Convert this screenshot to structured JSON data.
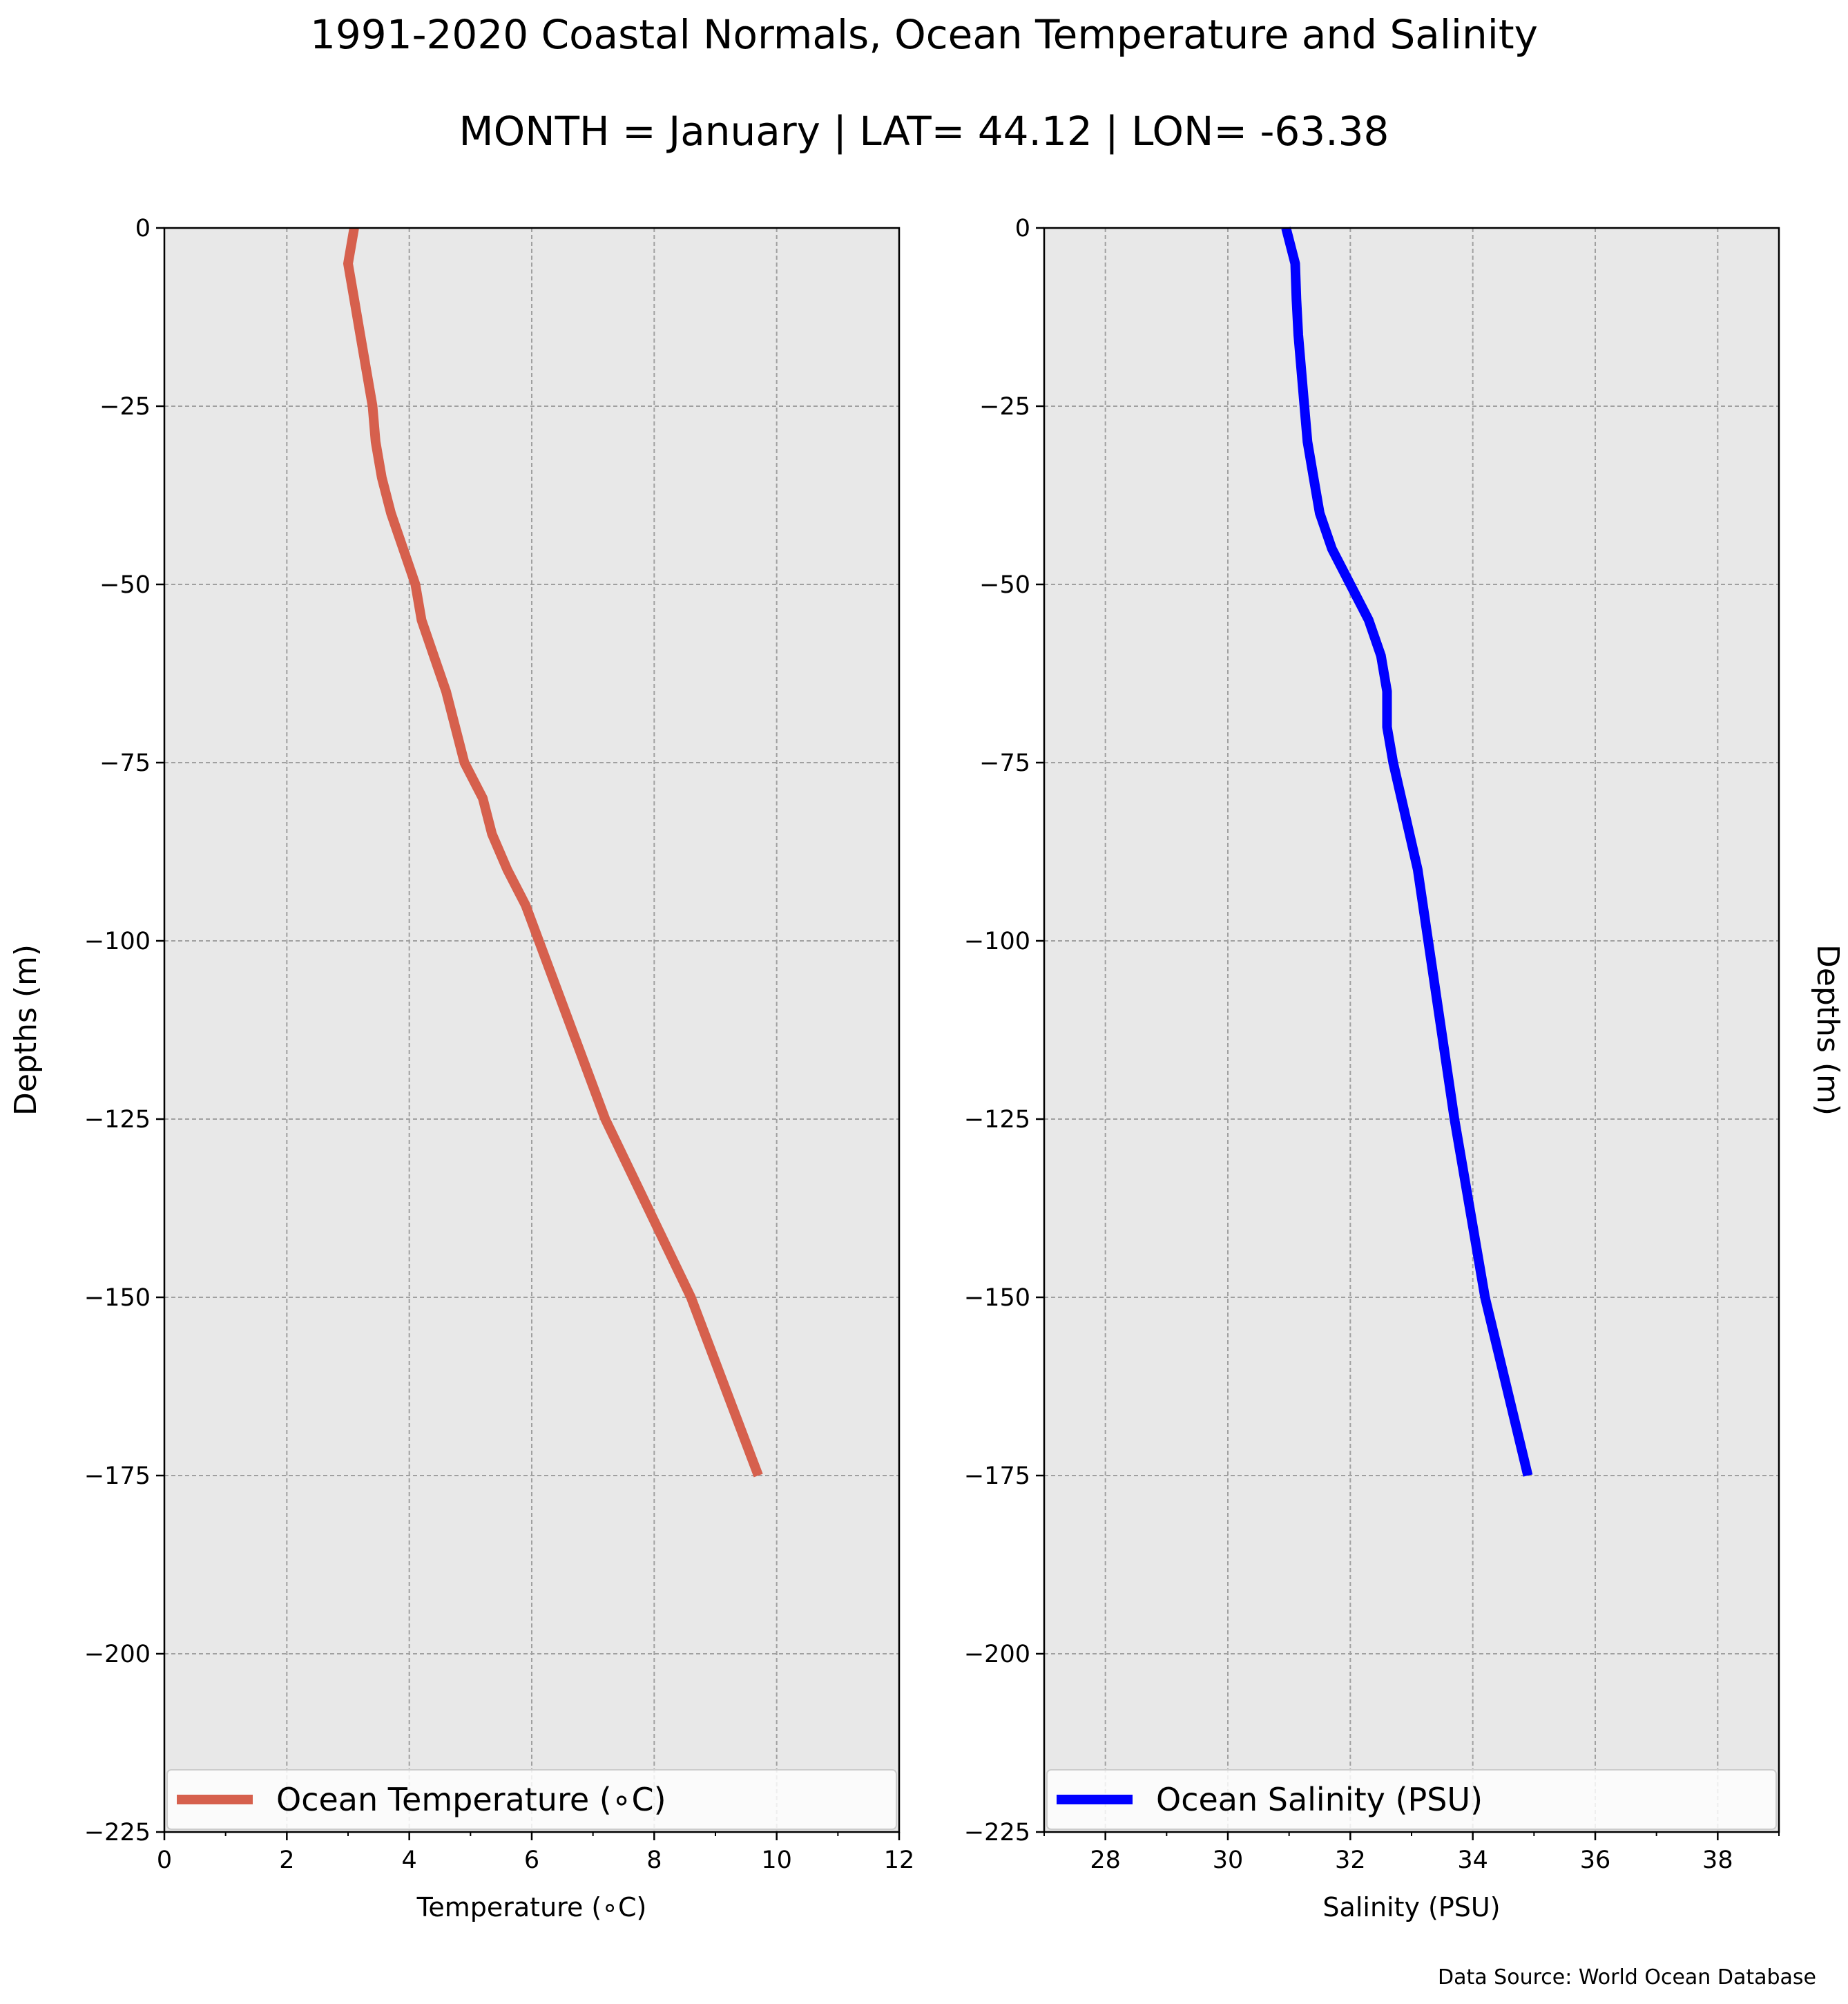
{
  "figure": {
    "title": "1991-2020 Coastal Normals, Ocean Temperature and Salinity",
    "subtitle": "MONTH = January | LAT= 44.12 | LON= -63.38",
    "source": "Data Source: World Ocean Database",
    "background": "#e8e8e8",
    "grid": true
  },
  "chart_data": [
    {
      "type": "line",
      "xlabel": "Temperature (∘C)",
      "ylabel": "Depths (m)",
      "ylabel_side": "left",
      "xlim": [
        0,
        12
      ],
      "ylim": [
        -225,
        0
      ],
      "xticks": [
        0,
        2,
        4,
        6,
        8,
        10,
        12
      ],
      "xtick_labels": [
        "0",
        "2",
        "4",
        "6",
        "8",
        "10",
        "12"
      ],
      "yticks": [
        0,
        -25,
        -50,
        -75,
        -100,
        -125,
        -150,
        -175,
        -200,
        -225
      ],
      "ytick_labels": [
        "0",
        "−25",
        "−50",
        "−75",
        "−100",
        "−125",
        "−150",
        "−175",
        "−200",
        "−225"
      ],
      "legend_placement": "lower-center",
      "series": [
        {
          "name": "Ocean Temperature (∘C)",
          "color": "#d6604d",
          "x": [
            3.1,
            3.0,
            3.1,
            3.2,
            3.3,
            3.4,
            3.45,
            3.55,
            3.7,
            3.9,
            4.1,
            4.2,
            4.4,
            4.6,
            4.75,
            4.9,
            5.2,
            5.35,
            5.6,
            5.9,
            7.2,
            8.6,
            9.7
          ],
          "y": [
            0,
            -5,
            -10,
            -15,
            -20,
            -25,
            -30,
            -35,
            -40,
            -45,
            -50,
            -55,
            -60,
            -65,
            -70,
            -75,
            -80,
            -85,
            -90,
            -95,
            -125,
            -150,
            -175
          ]
        }
      ]
    },
    {
      "type": "line",
      "xlabel": "Salinity (PSU)",
      "ylabel": "Depths (m)",
      "ylabel_side": "right",
      "xlim": [
        27,
        39
      ],
      "ylim": [
        -225,
        0
      ],
      "xticks": [
        28,
        30,
        32,
        34,
        36,
        38
      ],
      "xtick_labels": [
        "28",
        "30",
        "32",
        "34",
        "36",
        "38"
      ],
      "yticks": [
        0,
        -25,
        -50,
        -75,
        -100,
        -125,
        -150,
        -175,
        -200,
        -225
      ],
      "ytick_labels": [
        "0",
        "−25",
        "−50",
        "−75",
        "−100",
        "−125",
        "−150",
        "−175",
        "−200",
        "−225"
      ],
      "legend_placement": "lower-center",
      "series": [
        {
          "name": "Ocean Salinity (PSU)",
          "color": "#0000ff",
          "x": [
            30.95,
            31.1,
            31.12,
            31.15,
            31.2,
            31.25,
            31.3,
            31.4,
            31.5,
            31.7,
            32.0,
            32.3,
            32.5,
            32.6,
            32.6,
            32.7,
            33.1,
            33.7,
            34.2,
            34.9
          ],
          "y": [
            0,
            -5,
            -10,
            -15,
            -20,
            -25,
            -30,
            -35,
            -40,
            -45,
            -50,
            -55,
            -60,
            -65,
            -70,
            -75,
            -90,
            -125,
            -150,
            -175
          ]
        }
      ]
    }
  ]
}
